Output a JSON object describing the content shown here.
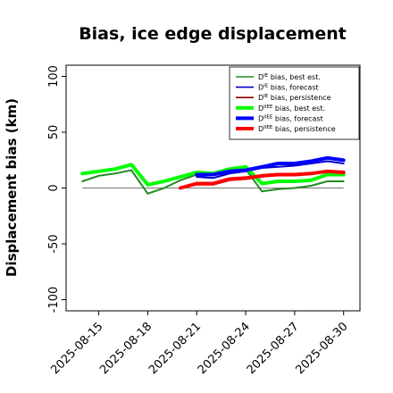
{
  "chart_data": {
    "type": "line",
    "title": "Bias, ice edge displacement",
    "xlabel": "",
    "ylabel": "Displacement bias (km)",
    "ylim": [
      -110,
      110
    ],
    "yticks": [
      -100,
      -50,
      0,
      50,
      100
    ],
    "xlim": [
      "2025-08-13",
      "2025-08-31"
    ],
    "xticks": [
      "2025-08-15",
      "2025-08-18",
      "2025-08-21",
      "2025-08-24",
      "2025-08-27",
      "2025-08-30"
    ],
    "highlight_tick": "2025-08-21",
    "highlight_color": "#228b22",
    "zero_line": true,
    "grid": false,
    "legend_position": "top-right",
    "series": [
      {
        "name": "DIE bias, best est.",
        "color": "#228b22",
        "width": 2,
        "x": [
          "2025-08-14",
          "2025-08-15",
          "2025-08-16",
          "2025-08-17",
          "2025-08-18",
          "2025-08-19",
          "2025-08-20",
          "2025-08-21",
          "2025-08-22",
          "2025-08-23",
          "2025-08-24",
          "2025-08-25",
          "2025-08-26",
          "2025-08-27",
          "2025-08-28",
          "2025-08-29",
          "2025-08-30"
        ],
        "y": [
          6,
          11,
          13,
          16,
          -5,
          0,
          7,
          12,
          13,
          17,
          17,
          -3,
          -1,
          0,
          2,
          6,
          6
        ]
      },
      {
        "name": "DIE bias, forecast",
        "color": "#0000cd",
        "width": 2,
        "x": [
          "2025-08-21",
          "2025-08-22",
          "2025-08-23",
          "2025-08-24",
          "2025-08-25",
          "2025-08-26",
          "2025-08-27",
          "2025-08-28",
          "2025-08-29",
          "2025-08-30"
        ],
        "y": [
          10,
          9,
          13,
          15,
          18,
          19,
          20,
          22,
          24,
          22
        ]
      },
      {
        "name": "DIE bias, persistence",
        "color": "#8b0000",
        "width": 2,
        "x": [
          "2025-08-20",
          "2025-08-21",
          "2025-08-22",
          "2025-08-23",
          "2025-08-24",
          "2025-08-25",
          "2025-08-26",
          "2025-08-27",
          "2025-08-28",
          "2025-08-29",
          "2025-08-30"
        ],
        "y": [
          0,
          3,
          3,
          7,
          8,
          10,
          12,
          12,
          13,
          14,
          13
        ]
      },
      {
        "name": "DIIEE bias, best est.",
        "color": "#00ff00",
        "width": 4,
        "x": [
          "2025-08-14",
          "2025-08-15",
          "2025-08-16",
          "2025-08-17",
          "2025-08-18",
          "2025-08-19",
          "2025-08-20",
          "2025-08-21",
          "2025-08-22",
          "2025-08-23",
          "2025-08-24",
          "2025-08-25",
          "2025-08-26",
          "2025-08-27",
          "2025-08-28",
          "2025-08-29",
          "2025-08-30"
        ],
        "y": [
          13,
          15,
          17,
          21,
          3,
          6,
          10,
          14,
          13,
          17,
          19,
          4,
          6,
          6,
          7,
          12,
          12
        ]
      },
      {
        "name": "DIIEE bias, forecast",
        "color": "#0000ff",
        "width": 4,
        "x": [
          "2025-08-21",
          "2025-08-22",
          "2025-08-23",
          "2025-08-24",
          "2025-08-25",
          "2025-08-26",
          "2025-08-27",
          "2025-08-28",
          "2025-08-29",
          "2025-08-30"
        ],
        "y": [
          12,
          12,
          15,
          16,
          19,
          22,
          22,
          24,
          27,
          25
        ]
      },
      {
        "name": "DIIEE bias, persistence",
        "color": "#ff0000",
        "width": 4,
        "x": [
          "2025-08-20",
          "2025-08-21",
          "2025-08-22",
          "2025-08-23",
          "2025-08-24",
          "2025-08-25",
          "2025-08-26",
          "2025-08-27",
          "2025-08-28",
          "2025-08-29",
          "2025-08-30"
        ],
        "y": [
          0,
          4,
          4,
          8,
          9,
          11,
          12,
          12,
          13,
          15,
          14
        ]
      }
    ]
  },
  "legend_entries": [
    {
      "prefix": "D",
      "sup": "IE",
      "suffix": " bias, best est."
    },
    {
      "prefix": "D",
      "sup": "IE",
      "suffix": " bias, forecast"
    },
    {
      "prefix": "D",
      "sup": "IE",
      "suffix": " bias, persistence"
    },
    {
      "prefix": "D",
      "sup": "IIEE",
      "suffix": " bias, best est."
    },
    {
      "prefix": "D",
      "sup": "IIEE",
      "suffix": " bias, forecast"
    },
    {
      "prefix": "D",
      "sup": "IIEE",
      "suffix": " bias, persistence"
    }
  ]
}
